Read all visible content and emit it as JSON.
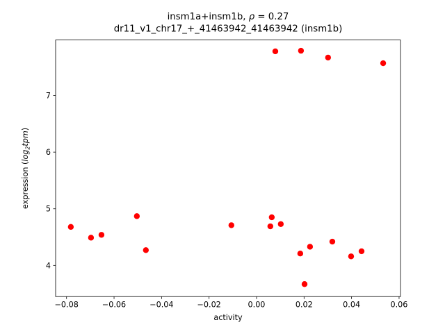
{
  "figure": {
    "title1_pre": "insm1a+insm1b, ",
    "title1_rho": "ρ",
    "title1_post": " = 0.27",
    "title2": "dr11_v1_chr17_+_41463942_41463942 (insm1b)",
    "xlabel": "activity",
    "ylabel_prefix": "expression (",
    "ylabel_log": "log",
    "ylabel_sub": "2",
    "ylabel_tpm": "tpm",
    "ylabel_suffix": ")"
  },
  "chart_data": {
    "type": "scatter",
    "title": "insm1a+insm1b, ρ = 0.27",
    "subtitle": "dr11_v1_chr17_+_41463942_41463942 (insm1b)",
    "xlabel": "activity",
    "ylabel": "expression (log2 tpm)",
    "legend": "none",
    "grid": false,
    "marker": "circle",
    "marker_color": "#ff0000",
    "xlim": [
      -0.0846,
      0.0606
    ],
    "ylim": [
      3.45,
      7.98
    ],
    "xticks": {
      "values": [
        -0.08,
        -0.06,
        -0.04,
        -0.02,
        0.0,
        0.02,
        0.04,
        0.06
      ],
      "labels": [
        "−0.08",
        "−0.06",
        "−0.04",
        "−0.02",
        "0.00",
        "0.02",
        "0.04",
        "0.06"
      ]
    },
    "yticks": {
      "values": [
        4,
        5,
        6,
        7
      ],
      "labels": [
        "4",
        "5",
        "6",
        "7"
      ]
    },
    "points": [
      [
        -0.0782,
        4.68
      ],
      [
        -0.0697,
        4.49
      ],
      [
        -0.0653,
        4.54
      ],
      [
        -0.0504,
        4.87
      ],
      [
        -0.0466,
        4.27
      ],
      [
        -0.0106,
        4.71
      ],
      [
        0.0058,
        4.69
      ],
      [
        0.0064,
        4.85
      ],
      [
        0.0079,
        7.78
      ],
      [
        0.0102,
        4.73
      ],
      [
        0.0184,
        4.21
      ],
      [
        0.0187,
        7.79
      ],
      [
        0.0202,
        3.67
      ],
      [
        0.0225,
        4.33
      ],
      [
        0.0301,
        7.67
      ],
      [
        0.0319,
        4.42
      ],
      [
        0.0398,
        4.16
      ],
      [
        0.0442,
        4.25
      ],
      [
        0.0533,
        7.57
      ]
    ]
  }
}
